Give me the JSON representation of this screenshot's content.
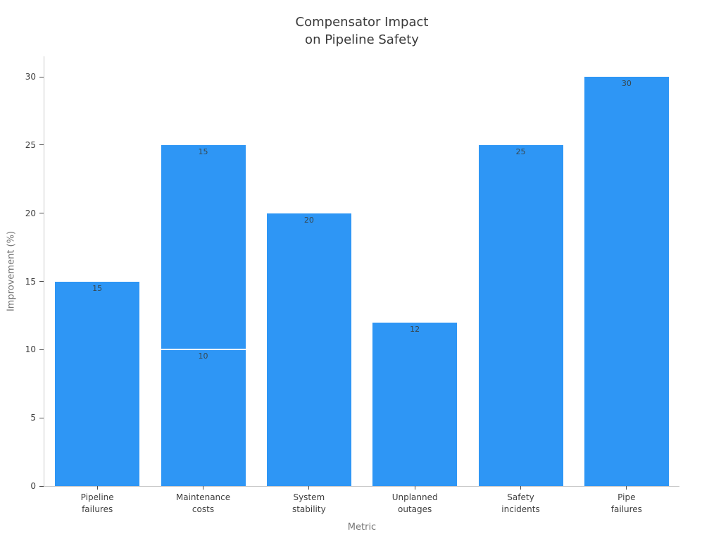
{
  "chart_data": {
    "type": "bar",
    "title": "Compensator Impact\non Pipeline Safety",
    "xlabel": "Metric",
    "ylabel": "Improvement (%)",
    "bars": [
      {
        "category": "Pipeline\nfailures",
        "segments": [
          15
        ],
        "total": 15
      },
      {
        "category": "Maintenance\ncosts",
        "segments": [
          10,
          15
        ],
        "total": 25
      },
      {
        "category": "System\nstability",
        "segments": [
          20
        ],
        "total": 20
      },
      {
        "category": "Unplanned\noutages",
        "segments": [
          12
        ],
        "total": 12
      },
      {
        "category": "Safety\nincidents",
        "segments": [
          25
        ],
        "total": 25
      },
      {
        "category": "Pipe\nfailures",
        "segments": [
          30
        ],
        "total": 30
      }
    ],
    "yticks": [
      0,
      5,
      10,
      15,
      20,
      25,
      30
    ],
    "ylim": [
      0,
      31.5
    ],
    "grid": false,
    "legend": "none",
    "colors": {
      "bar": "#2E96F5",
      "segment_divider": "#E9F3FD",
      "axis_line": "#C9C9C9",
      "tick_mark": "#4D4D4D",
      "tick_label": "#3D3D3D",
      "axis_title": "#757575",
      "title": "#3A3A3A",
      "bar_label": "#37474F",
      "background": "#FFFFFF"
    }
  }
}
